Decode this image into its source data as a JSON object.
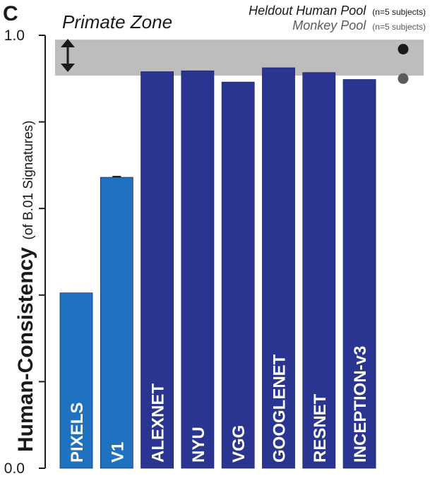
{
  "panel_label": "C",
  "zone_label": "Primate Zone",
  "legend": {
    "human_pool": {
      "label": "Heldout Human Pool",
      "note": "(n=5 subjects)",
      "color": "#1a1a1a"
    },
    "monkey_pool": {
      "label": "Monkey Pool",
      "note": "(n=5 subjects)",
      "color": "#5b5b5b"
    }
  },
  "colors": {
    "pixel_v1": "#1f72bf",
    "dcnn": "#2a3591",
    "zone": "#bdbdbd",
    "axis": "#1a1a1a",
    "bar_label": "#ffffff"
  },
  "chart_data": {
    "type": "bar",
    "ylabel": "Human-Consistency",
    "ylabel_sub": "(of B.01 Signatures)",
    "ylim": [
      0,
      1.0
    ],
    "yticks": [
      0.0,
      0.2,
      0.4,
      0.6,
      0.8,
      1.0
    ],
    "ytick_labels": [
      "0.0",
      "",
      "",
      "",
      "",
      "1.0"
    ],
    "categories": [
      "PIXELS",
      "V1",
      "ALEXNET",
      "NYU",
      "VGG",
      "GOOGLENET",
      "RESNET",
      "INCEPTION-v3"
    ],
    "values": [
      0.405,
      0.672,
      0.916,
      0.918,
      0.892,
      0.925,
      0.914,
      0.898
    ],
    "bar_groups": [
      "pixel_v1",
      "pixel_v1",
      "dcnn",
      "dcnn",
      "dcnn",
      "dcnn",
      "dcnn",
      "dcnn"
    ],
    "primate_zone": [
      0.907,
      0.99
    ],
    "reference_points": [
      {
        "name": "Heldout Human Pool",
        "value": 0.968
      },
      {
        "name": "Monkey Pool",
        "value": 0.9
      }
    ]
  }
}
